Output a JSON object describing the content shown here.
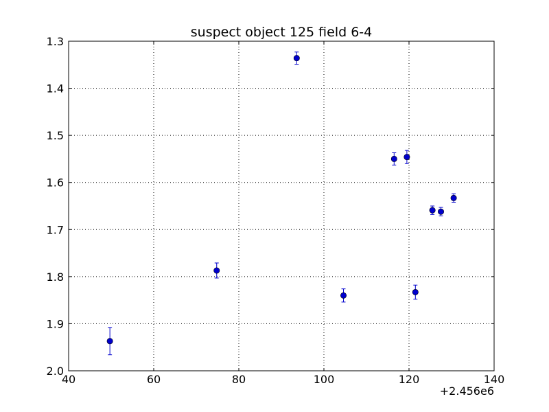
{
  "chart_data": {
    "type": "scatter",
    "title": "suspect object 125 field 6-4",
    "xlabel": "",
    "ylabel": "",
    "x_offset_label": "+2.456e6",
    "xlim": [
      40,
      140
    ],
    "ylim": [
      2.0,
      1.3
    ],
    "y_inverted": true,
    "xticks": [
      40,
      60,
      80,
      100,
      120,
      140
    ],
    "xtick_labels": [
      "40",
      "60",
      "80",
      "100",
      "120",
      "140"
    ],
    "yticks": [
      1.3,
      1.4,
      1.5,
      1.6,
      1.7,
      1.8,
      1.9,
      2.0
    ],
    "ytick_labels": [
      "1.3",
      "1.4",
      "1.5",
      "1.6",
      "1.7",
      "1.8",
      "1.9",
      "2.0"
    ],
    "grid": true,
    "legend": "none",
    "marker_color": "#0000cc",
    "errorbar_color": "#0000cc",
    "series": [
      {
        "points": [
          {
            "x": 49.7,
            "y": 1.937,
            "err": 0.029
          },
          {
            "x": 74.8,
            "y": 1.787,
            "err": 0.016
          },
          {
            "x": 93.6,
            "y": 1.336,
            "err": 0.013
          },
          {
            "x": 104.6,
            "y": 1.84,
            "err": 0.014
          },
          {
            "x": 116.5,
            "y": 1.55,
            "err": 0.013
          },
          {
            "x": 119.5,
            "y": 1.546,
            "err": 0.014
          },
          {
            "x": 121.5,
            "y": 1.833,
            "err": 0.015
          },
          {
            "x": 125.5,
            "y": 1.659,
            "err": 0.009
          },
          {
            "x": 127.5,
            "y": 1.662,
            "err": 0.009
          },
          {
            "x": 130.5,
            "y": 1.633,
            "err": 0.009
          }
        ]
      }
    ]
  }
}
